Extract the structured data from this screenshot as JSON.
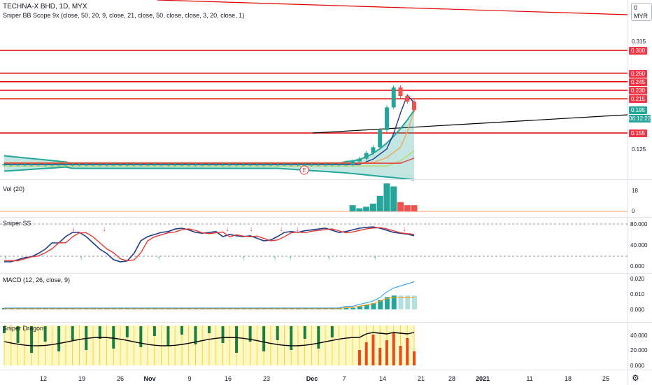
{
  "header": {
    "symbol": "TECHNA-X BHD, 1D, MYX",
    "indicator": "Sniper BB Scope 9x (close, 50, 20, 9, close, 21, close, 50, close, close, 3, 20, close, 1)",
    "currency": "MYR"
  },
  "panes": {
    "volume_title": "Vol (20)",
    "ss_title": "Sniper SS",
    "macd_title": "MACD (12, 26, close, 9)",
    "dragon_title": "Sniper Dragon"
  },
  "price_axis": {
    "plain": [
      {
        "v": 0.315,
        "t": "0.315"
      },
      {
        "v": 0.125,
        "t": "0.125"
      }
    ],
    "tags": [
      {
        "v": 0.3,
        "t": "0.300",
        "color": "#f23645"
      },
      {
        "v": 0.26,
        "t": "0.260",
        "color": "#f23645"
      },
      {
        "v": 0.245,
        "t": "0.245",
        "color": "#f23645"
      },
      {
        "v": 0.23,
        "t": "0.230",
        "color": "#f23645"
      },
      {
        "v": 0.215,
        "t": "0.215",
        "color": "#f23645"
      },
      {
        "v": 0.195,
        "t": "0.195",
        "color": "#26a69a"
      },
      {
        "v": 0.155,
        "t": "0.155",
        "color": "#f23645"
      }
    ],
    "countdown": "06:12:22",
    "top_label": "0",
    "top_label_currency": "MYR"
  },
  "volume_axis": [
    "18",
    "0"
  ],
  "ss_axis": [
    "80.000",
    "40.000",
    "0.000"
  ],
  "macd_axis": [
    "0.020",
    "0.010",
    "0.000"
  ],
  "dragon_axis": [
    "40.000",
    "20.000",
    "0.000"
  ],
  "x_axis": [
    "12",
    "19",
    "26",
    "Nov",
    "9",
    "16",
    "23",
    "Dec",
    "7",
    "14",
    "21",
    "28",
    "2021",
    "11",
    "18",
    "25"
  ],
  "event_marker": "E",
  "chart_data": {
    "type": "candlestick",
    "title": "TECHNA-X BHD, 1D, MYX",
    "ylim": [
      0.075,
      0.34
    ],
    "horizontal_levels": [
      0.3,
      0.26,
      0.245,
      0.23,
      0.215,
      0.155
    ],
    "close": [
      0.1,
      0.1,
      0.1,
      0.1,
      0.1,
      0.1,
      0.1,
      0.1,
      0.1,
      0.1,
      0.1,
      0.1,
      0.1,
      0.1,
      0.1,
      0.1,
      0.1,
      0.1,
      0.1,
      0.1,
      0.1,
      0.1,
      0.1,
      0.1,
      0.1,
      0.1,
      0.1,
      0.1,
      0.1,
      0.1,
      0.1,
      0.1,
      0.1,
      0.1,
      0.1,
      0.1,
      0.1,
      0.1,
      0.1,
      0.1,
      0.1,
      0.1,
      0.1,
      0.1,
      0.1,
      0.1,
      0.1,
      0.1,
      0.1,
      0.1,
      0.1,
      0.105,
      0.11,
      0.12,
      0.13,
      0.16,
      0.2,
      0.235,
      0.22,
      0.21,
      0.195
    ],
    "volume": [
      0,
      0,
      0,
      0,
      0,
      0,
      0,
      0,
      0,
      0,
      0,
      0,
      0,
      0,
      0,
      0,
      0,
      0,
      0,
      0,
      0,
      0,
      0,
      0,
      0,
      0,
      0,
      0,
      0,
      0,
      0,
      0,
      0,
      0,
      0,
      0,
      0,
      0,
      0,
      0,
      0,
      0,
      0,
      0,
      0,
      0,
      0,
      0,
      0,
      0,
      0,
      4,
      2,
      3,
      5,
      10,
      18,
      16,
      6,
      4,
      4
    ],
    "macd_hist": [
      0,
      0,
      0,
      0,
      0,
      0,
      0,
      0,
      0,
      0,
      0,
      0,
      0,
      0,
      0,
      0,
      0,
      0,
      0,
      0,
      0,
      0,
      0,
      0,
      0,
      0,
      0,
      0,
      0,
      0,
      0,
      0,
      0,
      0,
      0,
      0,
      0,
      0,
      0,
      0,
      0,
      0,
      0,
      0,
      0,
      0,
      0,
      0,
      0,
      0,
      0.001,
      0.001,
      0.002,
      0.003,
      0.004,
      0.006,
      0.008,
      0.009,
      0.009,
      0.009,
      0.009
    ]
  }
}
